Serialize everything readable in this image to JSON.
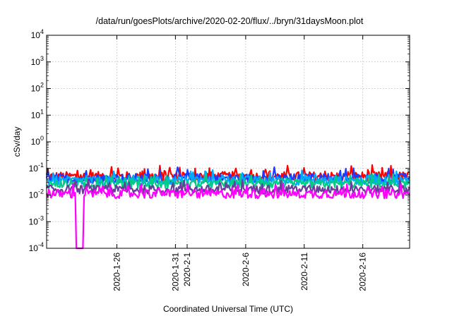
{
  "chart_data": {
    "type": "line",
    "title": "/data/run/goesPlots/archive/2020-02-20/flux/../bryn/31daysMoon.plot",
    "xlabel": "Coordinated Universal Time (UTC)",
    "ylabel": "cSv/day",
    "yscale": "log",
    "ylim": [
      0.0001,
      10000
    ],
    "yticks": [
      {
        "base": "10",
        "exp": "-4"
      },
      {
        "base": "10",
        "exp": "-3"
      },
      {
        "base": "10",
        "exp": "-2"
      },
      {
        "base": "10",
        "exp": "-1"
      },
      {
        "base": "10",
        "exp": "0"
      },
      {
        "base": "10",
        "exp": "1"
      },
      {
        "base": "10",
        "exp": "2"
      },
      {
        "base": "10",
        "exp": "3"
      },
      {
        "base": "10",
        "exp": "4"
      }
    ],
    "xlim": [
      "2020-01-20",
      "2020-02-20"
    ],
    "xticks": [
      "2020-1-26",
      "2020-1-31",
      "2020-2-1",
      "2020-2-6",
      "2020-2-11",
      "2020-2-16"
    ],
    "grid": true,
    "series": [
      {
        "color": "#ff0000",
        "level": 0.05,
        "spread": 0.18
      },
      {
        "color": "#1a3cff",
        "level": 0.042,
        "spread": 0.18
      },
      {
        "color": "#00aaff",
        "level": 0.035,
        "spread": 0.17
      },
      {
        "color": "#00cc88",
        "level": 0.026,
        "spread": 0.16
      },
      {
        "color": "#6a3d9a",
        "level": 0.016,
        "spread": 0.16
      },
      {
        "color": "#ff00ff",
        "level": 0.011,
        "spread": 0.17,
        "dropout": {
          "from": "2020-01-22",
          "to": "2020-01-22"
        }
      }
    ]
  }
}
